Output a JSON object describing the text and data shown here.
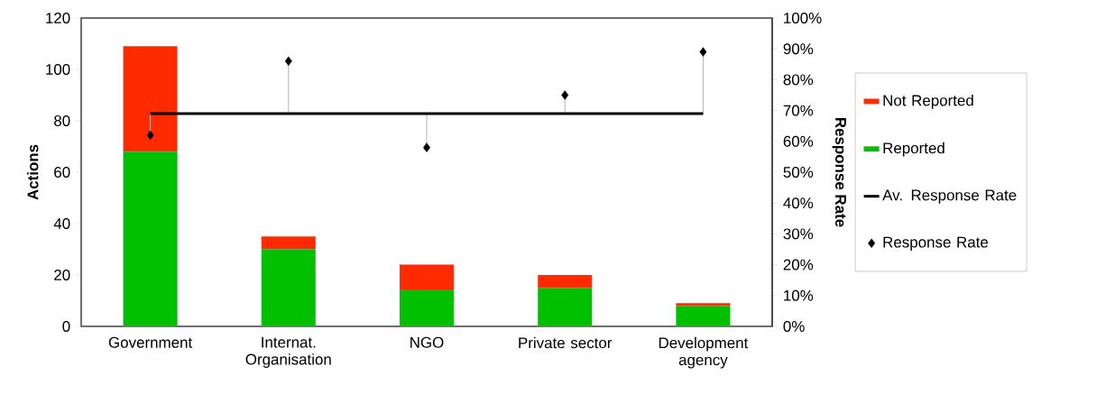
{
  "chart_data": {
    "type": "bar",
    "stacked": true,
    "categories": [
      "Government",
      "Internat. Organisation",
      "NGO",
      "Private sector",
      "Development agency"
    ],
    "ylabel": "Actions",
    "y2label": "Response Rate",
    "ylim": [
      0,
      120
    ],
    "yticks": [
      0,
      20,
      40,
      60,
      80,
      100,
      120
    ],
    "y2lim": [
      0,
      100
    ],
    "y2ticks": [
      {
        "value": 0,
        "label": "0%"
      },
      {
        "value": 10,
        "label": "10%"
      },
      {
        "value": 20,
        "label": "20%"
      },
      {
        "value": 30,
        "label": "30%"
      },
      {
        "value": 40,
        "label": "40%"
      },
      {
        "value": 50,
        "label": "50%"
      },
      {
        "value": 60,
        "label": "60%"
      },
      {
        "value": 70,
        "label": "70%"
      },
      {
        "value": 80,
        "label": "80%"
      },
      {
        "value": 90,
        "label": "90%"
      },
      {
        "value": 100,
        "label": "100%"
      }
    ],
    "legend": "right",
    "series": [
      {
        "name": "Reported",
        "color": "#00c000",
        "values": [
          68,
          30,
          14,
          15,
          8
        ]
      },
      {
        "name": "Not Reported",
        "color": "#ff2a00",
        "values": [
          41,
          5,
          10,
          5,
          1
        ]
      },
      {
        "name": "Av. Response Rate",
        "type": "line",
        "axis": "y2",
        "color": "#000000",
        "marker": "none",
        "values": [
          69,
          69,
          69,
          69,
          69
        ]
      },
      {
        "name": "Response Rate",
        "type": "scatter",
        "axis": "y2",
        "color": "#000000",
        "marker": "diamond",
        "values": [
          62,
          86,
          58,
          75,
          89
        ],
        "errors": [
          [
            62,
            69
          ],
          [
            69,
            86
          ],
          [
            58,
            69
          ],
          [
            69,
            75
          ],
          [
            69,
            89
          ]
        ]
      }
    ]
  }
}
